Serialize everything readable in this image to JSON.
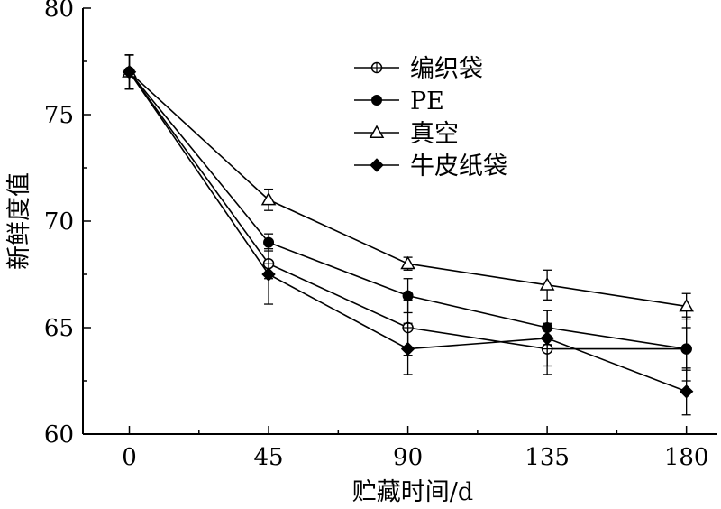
{
  "chart_data": {
    "type": "line",
    "title": "",
    "xlabel": "贮藏时间/d",
    "ylabel": "新鲜度值",
    "x": [
      0,
      45,
      90,
      135,
      180
    ],
    "xlim": [
      -15,
      190
    ],
    "ylim": [
      60,
      80
    ],
    "x_ticks": [
      "0",
      "45",
      "90",
      "135",
      "180"
    ],
    "y_ticks": [
      "60",
      "65",
      "70",
      "75",
      "80"
    ],
    "grid": false,
    "legend_position": "top-right",
    "series": [
      {
        "name": "编织袋",
        "marker": "circle-plus",
        "values": [
          77,
          68,
          65,
          64,
          64
        ],
        "errors": [
          0.8,
          0.7,
          1.3,
          1.2,
          1.5
        ]
      },
      {
        "name": "PE",
        "marker": "filled-circle",
        "values": [
          77,
          69,
          66.5,
          65,
          64
        ],
        "errors": [
          0.8,
          0.4,
          0.8,
          0.8,
          1.0
        ]
      },
      {
        "name": "真空",
        "marker": "open-triangle",
        "values": [
          77,
          71,
          68,
          67,
          66
        ],
        "errors": [
          0.8,
          0.5,
          0.3,
          0.7,
          0.6
        ]
      },
      {
        "name": "牛皮纸袋",
        "marker": "filled-diamond",
        "values": [
          77,
          67.5,
          64,
          64.5,
          62
        ],
        "errors": [
          0.8,
          1.4,
          1.2,
          1.3,
          1.1
        ]
      }
    ]
  }
}
